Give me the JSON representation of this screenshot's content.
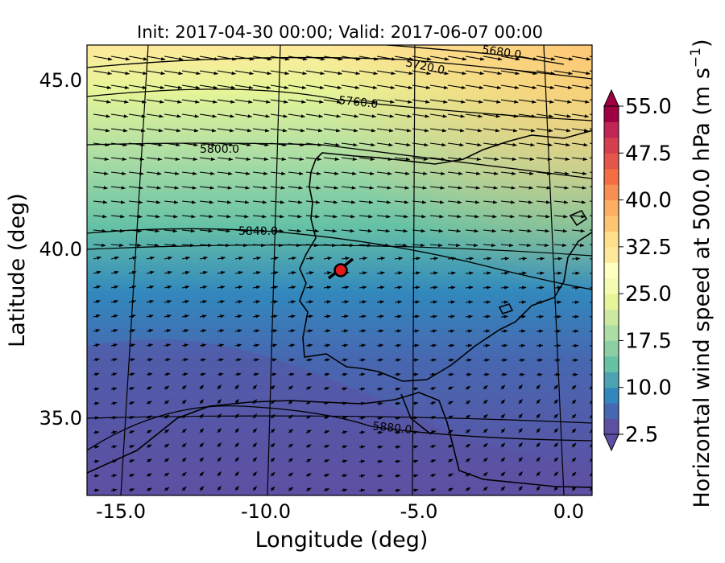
{
  "title": "Init: 2017-04-30 00:00; Valid: 2017-06-07 00:00",
  "axes": {
    "xlabel": "Longitude (deg)",
    "ylabel": "Latitude (deg)",
    "xticks": [
      "-15.0",
      "-10.0",
      "-5.0",
      "0.0"
    ],
    "yticks": [
      "45.0",
      "40.0",
      "35.0"
    ]
  },
  "colorbar": {
    "label": "Horizontal wind speed at 500.0 hPa (m s$^{-1}$)",
    "label_main": "Horizontal wind speed at 500.0 hPa (m s",
    "label_exp": "−1",
    "label_close": ")",
    "ticks": [
      "55.0",
      "47.5",
      "40.0",
      "32.5",
      "25.0",
      "17.5",
      "10.0",
      "2.5"
    ],
    "colors": [
      "#5e4fa2",
      "#4767b0",
      "#3288bd",
      "#4ca3b2",
      "#66c2a5",
      "#8ccfa4",
      "#abdda4",
      "#cce9a0",
      "#e6f598",
      "#f6fbb2",
      "#ffffbf",
      "#fee99b",
      "#fee08b",
      "#fdc571",
      "#fdae61",
      "#f88f52",
      "#f46d43",
      "#e35649",
      "#d53e4f",
      "#c02553",
      "#9e0142"
    ]
  },
  "contours": [
    {
      "label": "5680.0"
    },
    {
      "label": "5720.0"
    },
    {
      "label": "5760.0"
    },
    {
      "label": "5800.0"
    },
    {
      "label": "5840.0"
    },
    {
      "label": "5880.0"
    }
  ],
  "marker": {
    "name": "station",
    "color": "#e31a1c"
  },
  "chart_data": {
    "type": "map",
    "projection": "lambert-conformal",
    "field": "horizontal wind speed 500 hPa",
    "units": "m s-1",
    "vmin": 2.5,
    "vmax": 55.0,
    "extent": {
      "lon": [
        -16,
        0.2
      ],
      "lat": [
        32.8,
        46.3
      ]
    },
    "geopotential_height_contours": [
      5680,
      5720,
      5760,
      5800,
      5840,
      5880
    ],
    "marker_lonlat": [
      -7.7,
      39.3
    ]
  }
}
